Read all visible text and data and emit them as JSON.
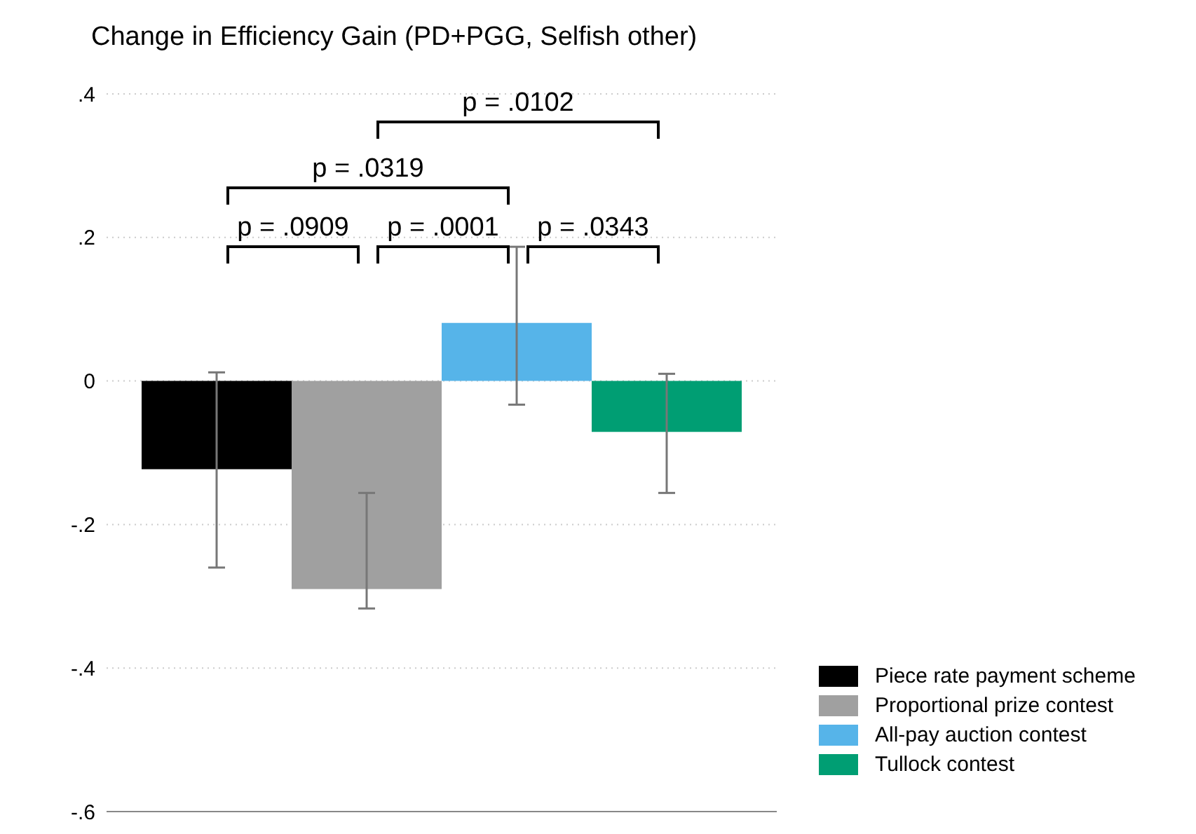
{
  "chart_data": {
    "type": "bar",
    "title": "Change in Efficiency Gain (PD+PGG, Selfish other)",
    "categories": [
      null
    ],
    "series": [
      {
        "name": "Piece rate payment scheme",
        "color": "#000000",
        "values": [
          -0.123
        ],
        "errors": [
          [
            -0.26,
            0.012
          ]
        ]
      },
      {
        "name": "Proportional prize contest",
        "color": "#a0a0a0",
        "values": [
          -0.29
        ],
        "errors": [
          [
            -0.317,
            -0.156
          ]
        ]
      },
      {
        "name": "All-pay auction contest",
        "color": "#56b4e9",
        "values": [
          0.081
        ],
        "errors": [
          [
            -0.033,
            0.187
          ]
        ]
      },
      {
        "name": "Tullock contest",
        "color": "#009e73",
        "values": [
          -0.071
        ],
        "errors": [
          [
            -0.156,
            0.01
          ]
        ]
      }
    ],
    "ylim": [
      -0.6,
      0.4
    ],
    "yticks": [
      {
        "value": -0.6,
        "label": "-.6"
      },
      {
        "value": -0.4,
        "label": "-.4"
      },
      {
        "value": -0.2,
        "label": "-.2"
      },
      {
        "value": 0,
        "label": "0"
      },
      {
        "value": 0.2,
        "label": ".2"
      },
      {
        "value": 0.4,
        "label": ".4"
      }
    ],
    "grid": "y",
    "legend": "bottom right",
    "tick_labels": "y",
    "annotations": [
      "p = .0909",
      "p = .0001",
      "p = .0343",
      "p = .0319",
      "p = .0102"
    ]
  }
}
